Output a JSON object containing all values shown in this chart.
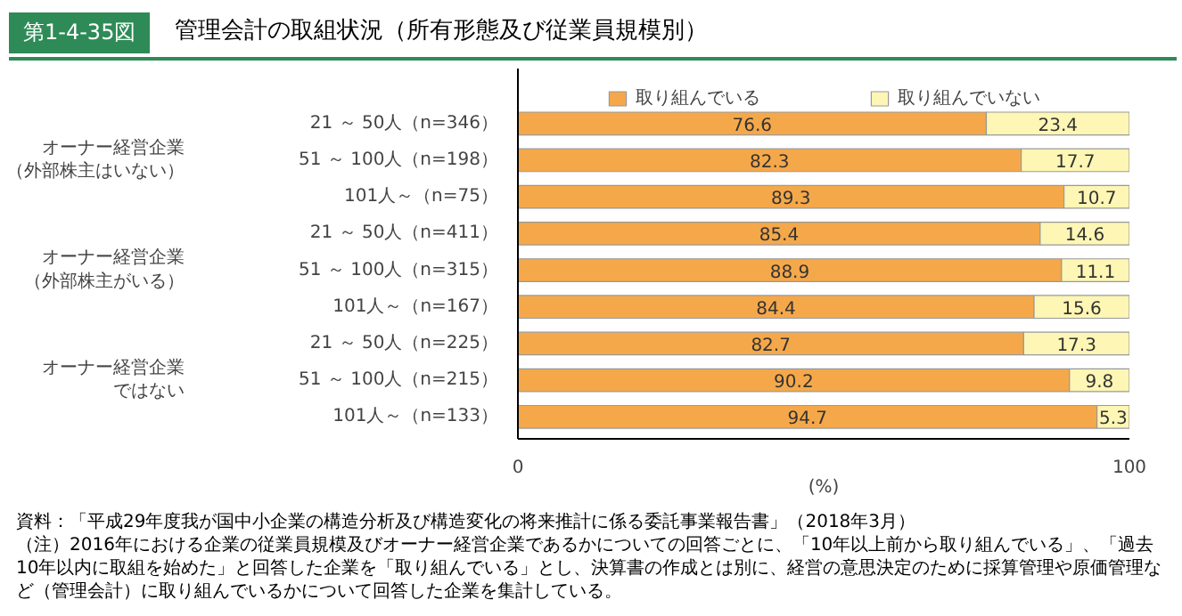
{
  "chart_data": {
    "type": "bar",
    "orientation": "horizontal",
    "stacked": true,
    "title": "管理会計の取組状況（所有形態及び従業員規模別）",
    "categories": [
      "21 ～ 50人（n=346）",
      "51 ～ 100人（n=198）",
      "101人～（n=75）",
      "21 ～ 50人（n=411）",
      "51 ～ 100人（n=315）",
      "101人～（n=167）",
      "21 ～ 50人（n=225）",
      "51 ～ 100人（n=215）",
      "101人～（n=133）"
    ],
    "series": [
      {
        "name": "取り組んでいる",
        "color": "#f5a84a",
        "values": [
          76.6,
          82.3,
          89.3,
          85.4,
          88.9,
          84.4,
          82.7,
          90.2,
          94.7
        ]
      },
      {
        "name": "取り組んでいない",
        "color": "#fdf6b4",
        "values": [
          23.4,
          17.7,
          10.7,
          14.6,
          11.1,
          15.6,
          17.3,
          9.8,
          5.3
        ]
      }
    ],
    "xlim": [
      0,
      100
    ],
    "xticks": [
      0,
      100
    ],
    "xlabel": "(%)",
    "data_labels": true,
    "legend": "top",
    "annotations": [
      "オーナー経営企業",
      "（外部株主はいない）",
      "オーナー経営企業",
      "（外部株主がいる）",
      "オーナー経営企業",
      "ではない",
      "第1-4-35図",
      "資料：「平成29年度我が国中小企業の構造分析及び構造変化の将来推計に係る委託事業報告書」（2018年3月）",
      "（注）2016年における企業の従業員規模及びオーナー経営企業であるかについての回答ごとに、「10年以上前から取り組んでいる」、「過去10年以内に取組を始めた」と回答した企業を「取り組んでいる」とし、決算書の作成とは別に、経営の意思決定のために採算管理や原価管理など（管理会計）に取り組んでいるかについて回答した企業を集計している。"
    ]
  }
}
